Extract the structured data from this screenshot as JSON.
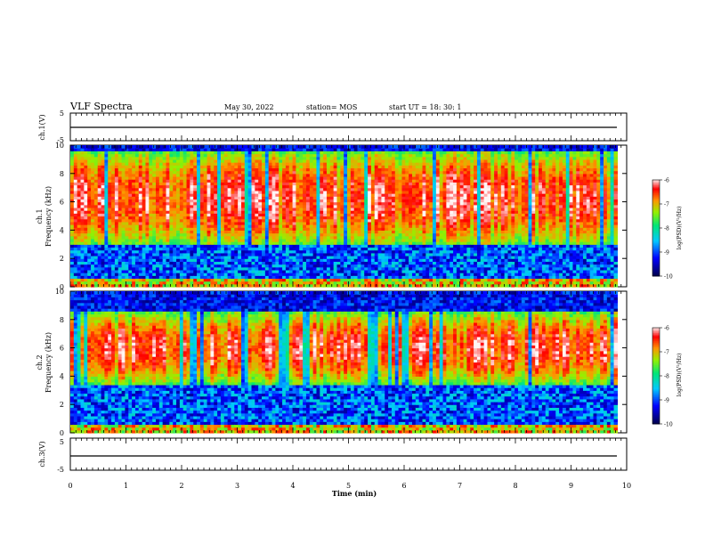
{
  "header": {
    "title": "VLF Spectra",
    "date": "May 30, 2022",
    "station": "station= MOS",
    "start": "start  UT =   18: 30: 1"
  },
  "chart_data": [
    {
      "type": "line",
      "panel": "ch1-waveform",
      "ylabel": "ch.1(V)",
      "ylim": [
        -5,
        5
      ],
      "yticks": [
        "5",
        "-5"
      ],
      "series": [
        {
          "values_approx_constant": -0.3
        }
      ]
    },
    {
      "type": "heatmap",
      "panel": "ch1-spectrogram",
      "ylabel_line1": "ch.1",
      "ylabel_line2": "Frequency (kHz)",
      "ylim": [
        0,
        10
      ],
      "yticks": [
        "0",
        "2",
        "4",
        "6",
        "8",
        "10"
      ],
      "colorbar": {
        "label": "log(PSD)(V²/Hz)",
        "range": [
          -10,
          -6
        ],
        "ticks": [
          "-6",
          "-7",
          "-8",
          "-9",
          "-10"
        ]
      },
      "emission_band_khz": [
        3,
        9.5
      ],
      "background_level": -9.5
    },
    {
      "type": "heatmap",
      "panel": "ch2-spectrogram",
      "ylabel_line1": "ch.2",
      "ylabel_line2": "Frequency (kHz)",
      "ylim": [
        0,
        10
      ],
      "yticks": [
        "0",
        "2",
        "4",
        "6",
        "8",
        "10"
      ],
      "colorbar": {
        "label": "log(PSD)(V²/Hz)",
        "range": [
          -10,
          -6
        ],
        "ticks": [
          "-6",
          "-7",
          "-8",
          "-9",
          "-10"
        ]
      },
      "emission_band_khz": [
        3.5,
        8.5
      ],
      "background_level": -9.5
    },
    {
      "type": "line",
      "panel": "ch3-waveform",
      "ylabel": "ch.3(V)",
      "ylim": [
        -5,
        5
      ],
      "yticks": [
        "5",
        "-5"
      ],
      "series": [
        {
          "values_approx_constant": -0.3
        }
      ]
    }
  ],
  "xaxis": {
    "label": "Time  (min)",
    "xlim": [
      0,
      10
    ],
    "data_end": 9.83,
    "ticks": [
      "0",
      "1",
      "2",
      "3",
      "4",
      "5",
      "6",
      "7",
      "8",
      "9",
      "10"
    ]
  }
}
